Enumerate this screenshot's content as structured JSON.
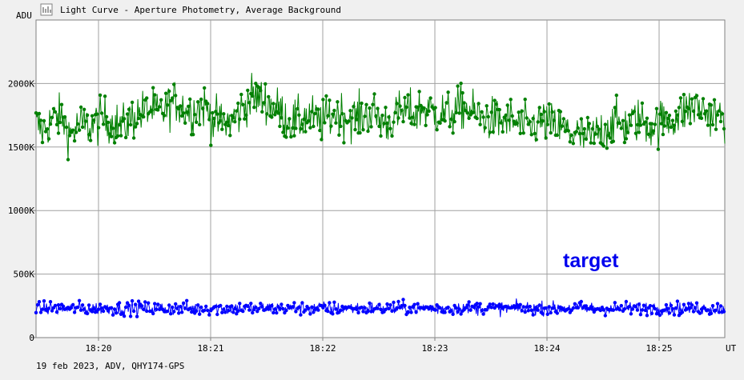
{
  "window": {
    "title": "Light Curve - Aperture Photometry, Average Background",
    "icon": "light-curve-chart-icon",
    "footer": "19 feb 2023, ADV, QHY174-GPS"
  },
  "chart_data": {
    "type": "scatter",
    "title": "Light Curve - Aperture Photometry, Average Background",
    "xlabel": "UT",
    "ylabel": "ADU",
    "x_ticks": [
      "18:20",
      "18:21",
      "18:22",
      "18:23",
      "18:24",
      "18:25"
    ],
    "y_ticks": [
      "0",
      "500K",
      "1000K",
      "1500K",
      "2000K"
    ],
    "x_range": [
      "18:19:26",
      "18:25:34"
    ],
    "ylim": [
      0,
      2500000
    ],
    "grid": true,
    "annotation": "target",
    "series": [
      {
        "color": "#008000",
        "style": "line-with-markers",
        "values": [
          1680000,
          1630000,
          1690000,
          1740000,
          1720000,
          1600000,
          1650000,
          1680000,
          1660000,
          1690000,
          1730000,
          1700000,
          1680000,
          1660000,
          1720000,
          1760000,
          1780000,
          1800000,
          1760000,
          1790000,
          1840000,
          1860000,
          1800000,
          1780000,
          1810000,
          1820000,
          1730000,
          1700000,
          1690000,
          1700000,
          1760000,
          1840000,
          1900000,
          1880000,
          1860000,
          1820000,
          1790000,
          1730000,
          1700000,
          1710000,
          1740000,
          1730000,
          1690000,
          1720000,
          1760000,
          1770000,
          1740000,
          1730000,
          1740000,
          1760000,
          1770000,
          1710000,
          1690000,
          1720000,
          1770000,
          1780000,
          1760000,
          1800000,
          1800000,
          1770000,
          1770000,
          1760000,
          1770000,
          1820000,
          1800000,
          1760000,
          1740000,
          1730000,
          1710000,
          1700000,
          1720000,
          1690000,
          1670000,
          1650000,
          1680000,
          1700000,
          1680000,
          1660000,
          1640000,
          1620000,
          1600000,
          1580000,
          1570000,
          1600000,
          1640000,
          1680000,
          1690000,
          1670000,
          1680000,
          1720000,
          1700000,
          1660000,
          1680000,
          1710000,
          1720000,
          1740000,
          1780000,
          1810000,
          1820000,
          1780000,
          1760000,
          1740000,
          1730000
        ],
        "y_range_min": 1400000,
        "y_range_max": 2150000
      },
      {
        "color": "#0000ff",
        "style": "line-with-markers",
        "values": [
          230000,
          228000,
          233000,
          231000,
          229000,
          232000,
          234000,
          230000,
          229000,
          232000,
          231000,
          230000,
          228000,
          232000,
          233000,
          230000,
          229000,
          231000,
          232000,
          230000,
          228000,
          231000,
          233000,
          230000,
          229000,
          231000,
          232000,
          230000,
          229000,
          232000,
          231000,
          230000,
          228000,
          232000,
          233000,
          230000,
          229000,
          231000,
          232000,
          230000,
          228000,
          231000,
          233000,
          230000,
          229000,
          231000,
          232000,
          230000,
          229000,
          232000,
          231000,
          230000,
          228000,
          232000,
          233000,
          230000,
          229000,
          231000,
          232000,
          230000,
          228000,
          231000,
          233000,
          230000,
          229000,
          231000,
          232000,
          230000,
          229000,
          232000,
          231000,
          230000,
          228000,
          232000,
          233000,
          230000,
          229000,
          231000,
          232000,
          230000,
          228000,
          231000,
          233000,
          230000,
          229000,
          231000,
          232000,
          230000,
          229000,
          232000,
          231000,
          230000,
          228000,
          232000,
          233000,
          230000,
          229000,
          231000,
          232000,
          230000,
          230000
        ],
        "y_range_min": 100000,
        "y_range_max": 390000
      }
    ]
  }
}
